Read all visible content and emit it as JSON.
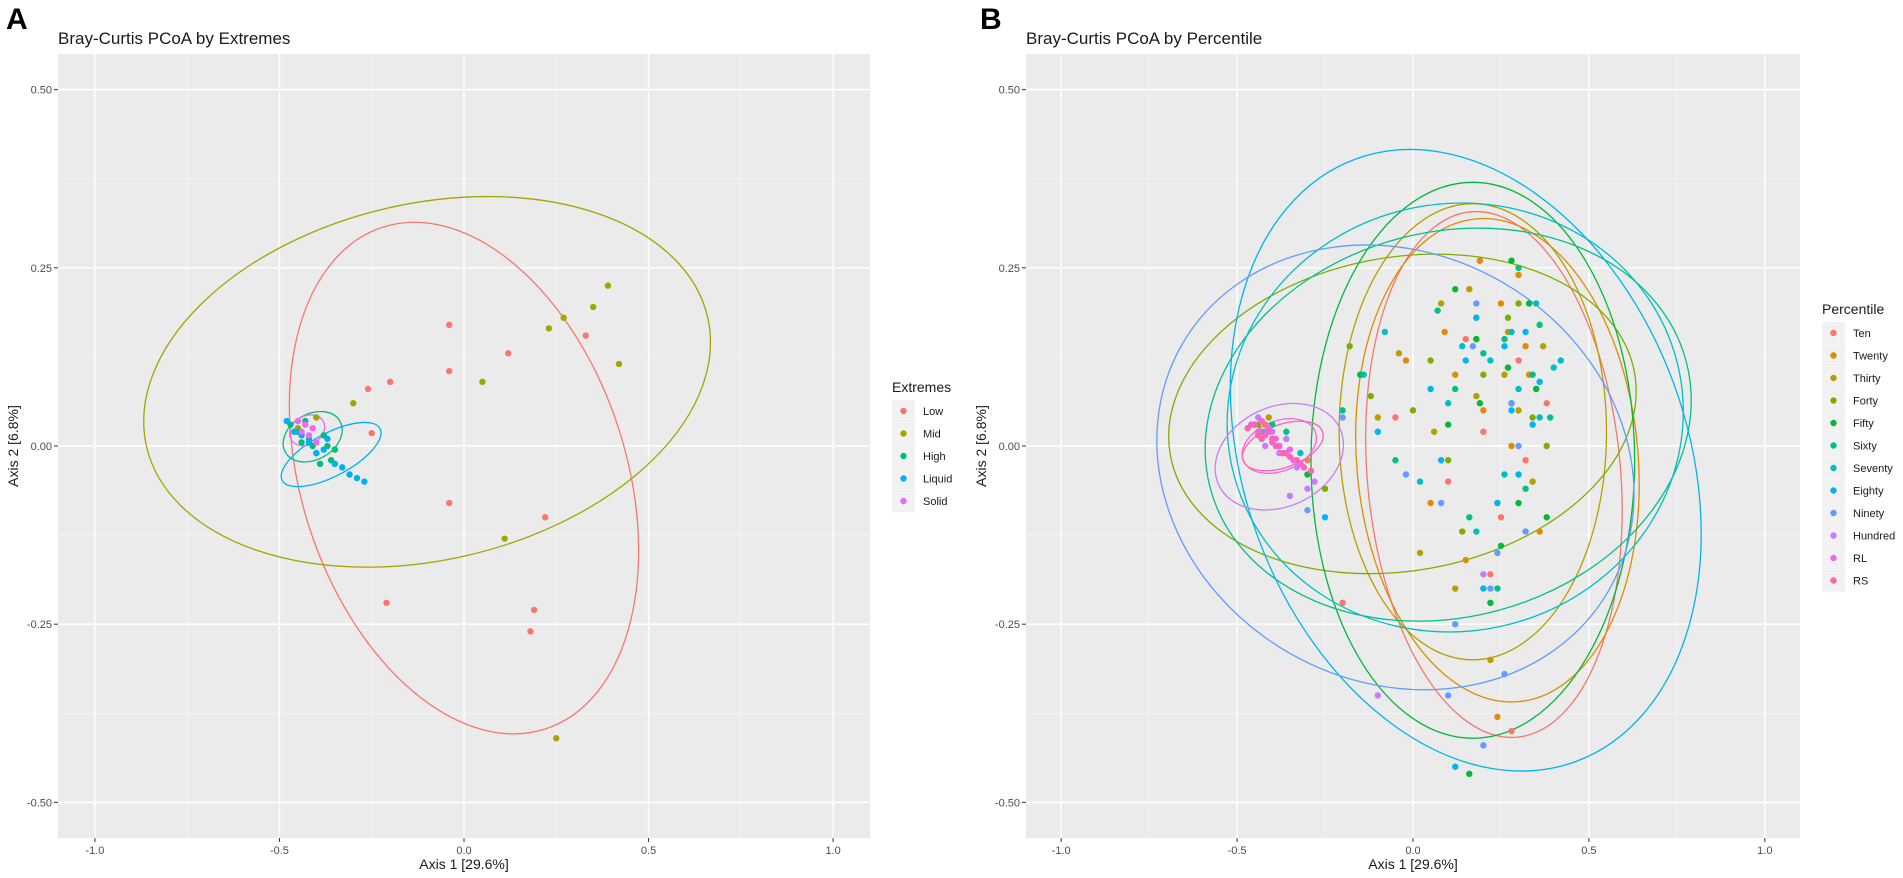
{
  "figure": {
    "panels": [
      {
        "letter": "A",
        "title": "Bray-Curtis PCoA by Extremes",
        "xlabel": "Axis 1 [29.6%]",
        "ylabel": "Axis 2 [6.8%]",
        "xlim": [
          -1.1,
          1.1
        ],
        "ylim": [
          -0.55,
          0.55
        ],
        "x_ticks": [
          -1.0,
          -0.5,
          0.0,
          0.5,
          1.0
        ],
        "x_tick_labels": [
          "-1.0",
          "-0.5",
          "0.0",
          "0.5",
          "1.0"
        ],
        "y_ticks": [
          0.5,
          0.25,
          0.0,
          -0.25,
          -0.5
        ],
        "y_tick_labels": [
          "0.50",
          "0.25",
          "0.00",
          "-0.25",
          "-0.50"
        ],
        "legend": {
          "title": "Extremes",
          "entries": [
            {
              "label": "Low",
              "color": "#F8766D"
            },
            {
              "label": "Mid",
              "color": "#A3A500"
            },
            {
              "label": "High",
              "color": "#00BF7D"
            },
            {
              "label": "Liquid",
              "color": "#00B0F6"
            },
            {
              "label": "Solid",
              "color": "#E76BF3"
            }
          ]
        }
      },
      {
        "letter": "B",
        "title": "Bray-Curtis PCoA by Percentile",
        "xlabel": "Axis 1 [29.6%]",
        "ylabel": "Axis 2 [6.8%]",
        "xlim": [
          -1.1,
          1.1
        ],
        "ylim": [
          -0.55,
          0.55
        ],
        "x_ticks": [
          -1.0,
          -0.5,
          0.0,
          0.5,
          1.0
        ],
        "x_tick_labels": [
          "-1.0",
          "-0.5",
          "0.0",
          "0.5",
          "1.0"
        ],
        "y_ticks": [
          0.5,
          0.25,
          0.0,
          -0.25,
          -0.5
        ],
        "y_tick_labels": [
          "0.50",
          "0.25",
          "0.00",
          "-0.25",
          "-0.50"
        ],
        "legend": {
          "title": "Percentile",
          "entries": [
            {
              "label": "Ten",
              "color": "#F8766D"
            },
            {
              "label": "Twenty",
              "color": "#DE8C00"
            },
            {
              "label": "Thirty",
              "color": "#B79F00"
            },
            {
              "label": "Forty",
              "color": "#7CAE00"
            },
            {
              "label": "Fifty",
              "color": "#00BA38"
            },
            {
              "label": "Sixty",
              "color": "#00C08B"
            },
            {
              "label": "Seventy",
              "color": "#00BFC4"
            },
            {
              "label": "Eighty",
              "color": "#00B4F0"
            },
            {
              "label": "Ninety",
              "color": "#619CFF"
            },
            {
              "label": "Hundred",
              "color": "#C77CFF"
            },
            {
              "label": "RL",
              "color": "#F564E3"
            },
            {
              "label": "RS",
              "color": "#FF64B0"
            }
          ]
        }
      }
    ]
  },
  "chart_data": [
    {
      "type": "scatter",
      "title": "Bray-Curtis PCoA by Extremes",
      "xlabel": "Axis 1 [29.6%]",
      "ylabel": "Axis 2 [6.8%]",
      "xlim": [
        -1.1,
        1.1
      ],
      "ylim": [
        -0.55,
        0.55
      ],
      "grid": true,
      "legend_title": "Extremes",
      "legend_position": "right",
      "series": [
        {
          "name": "Low",
          "color": "#F8766D",
          "x": [
            -0.04,
            -0.04,
            0.12,
            0.33,
            -0.2,
            -0.25,
            -0.26,
            -0.04,
            0.22,
            0.19,
            0.18,
            -0.21
          ],
          "y": [
            0.17,
            0.105,
            0.13,
            0.155,
            0.09,
            0.018,
            0.08,
            -0.08,
            -0.1,
            -0.23,
            -0.26,
            -0.22
          ],
          "ellipse": {
            "cx": 0.0,
            "cy": -0.045,
            "rx": 0.44,
            "ry": 0.37,
            "angle": 18
          }
        },
        {
          "name": "Mid",
          "color": "#A3A500",
          "x": [
            0.39,
            0.35,
            0.27,
            0.23,
            0.42,
            0.05,
            -0.3,
            0.11,
            0.25,
            -0.45,
            -0.4
          ],
          "y": [
            0.225,
            0.195,
            0.18,
            0.165,
            0.115,
            0.09,
            0.06,
            -0.13,
            -0.41,
            0.025,
            0.04
          ],
          "ellipse": {
            "cx": -0.1,
            "cy": 0.09,
            "rx": 0.78,
            "ry": 0.25,
            "angle": 13
          }
        },
        {
          "name": "High",
          "color": "#00BF7D",
          "x": [
            -0.47,
            -0.45,
            -0.43,
            -0.42,
            -0.41,
            -0.4,
            -0.38,
            -0.36,
            -0.44,
            -0.39,
            -0.37,
            -0.35
          ],
          "y": [
            0.03,
            0.02,
            0.035,
            0.01,
            0.0,
            -0.01,
            0.015,
            -0.02,
            0.005,
            -0.025,
            0.0,
            -0.005
          ],
          "ellipse": {
            "cx": -0.41,
            "cy": 0.013,
            "rx": 0.085,
            "ry": 0.032,
            "angle": 30
          }
        },
        {
          "name": "Liquid",
          "color": "#00B0F6",
          "x": [
            -0.48,
            -0.46,
            -0.44,
            -0.42,
            -0.4,
            -0.38,
            -0.35,
            -0.33,
            -0.31,
            -0.29,
            -0.27,
            -0.37
          ],
          "y": [
            0.035,
            0.02,
            0.015,
            0.005,
            -0.01,
            -0.005,
            -0.025,
            -0.03,
            -0.04,
            -0.045,
            -0.05,
            0.01
          ],
          "ellipse": {
            "cx": -0.36,
            "cy": -0.012,
            "rx": 0.15,
            "ry": 0.03,
            "angle": 28
          }
        },
        {
          "name": "Solid",
          "color": "#E76BF3",
          "x": [
            -0.45,
            -0.44,
            -0.43,
            -0.42,
            -0.41,
            -0.4
          ],
          "y": [
            0.035,
            0.02,
            0.03,
            0.015,
            0.025,
            0.005
          ],
          "ellipse": {
            "cx": -0.425,
            "cy": 0.022,
            "rx": 0.05,
            "ry": 0.02,
            "angle": 30
          }
        }
      ]
    },
    {
      "type": "scatter",
      "title": "Bray-Curtis PCoA by Percentile",
      "xlabel": "Axis 1 [29.6%]",
      "ylabel": "Axis 2 [6.8%]",
      "xlim": [
        -1.1,
        1.1
      ],
      "ylim": [
        -0.55,
        0.55
      ],
      "grid": true,
      "legend_title": "Percentile",
      "legend_position": "right",
      "series": [
        {
          "name": "Ten",
          "color": "#F8766D",
          "x": [
            0.3,
            0.35,
            0.2,
            0.1,
            0.25,
            -0.05,
            0.15,
            0.32,
            0.38,
            0.22,
            -0.2,
            0.28,
            -0.42,
            -0.38,
            -0.3,
            0.18
          ],
          "y": [
            0.12,
            0.08,
            0.02,
            -0.05,
            -0.1,
            0.04,
            0.15,
            -0.02,
            0.06,
            -0.18,
            -0.22,
            -0.4,
            0.03,
            0.0,
            -0.02,
            0.18
          ],
          "ellipse": {
            "cx": 0.23,
            "cy": -0.04,
            "rx": 0.36,
            "ry": 0.37,
            "angle": 5
          }
        },
        {
          "name": "Twenty",
          "color": "#DE8C00",
          "x": [
            0.25,
            0.32,
            0.12,
            0.05,
            0.2,
            0.36,
            0.28,
            -0.02,
            0.15,
            0.24,
            0.3,
            -0.4,
            -0.36,
            0.19,
            0.09,
            0.33
          ],
          "y": [
            0.2,
            0.14,
            0.1,
            -0.08,
            0.05,
            -0.12,
            0.0,
            0.12,
            -0.16,
            -0.38,
            0.24,
            0.01,
            -0.01,
            0.26,
            0.16,
            0.1
          ],
          "ellipse": {
            "cx": 0.24,
            "cy": -0.02,
            "rx": 0.4,
            "ry": 0.34,
            "angle": 5
          }
        },
        {
          "name": "Thirty",
          "color": "#B79F00",
          "x": [
            -0.04,
            0.08,
            0.18,
            0.27,
            0.34,
            0.12,
            -0.1,
            0.22,
            0.3,
            -0.43,
            -0.41,
            0.02,
            0.16,
            0.26,
            0.37,
            0.06
          ],
          "y": [
            0.13,
            0.2,
            0.07,
            0.16,
            -0.05,
            -0.2,
            0.04,
            -0.3,
            0.05,
            0.02,
            0.04,
            -0.15,
            0.22,
            0.1,
            0.14,
            0.02
          ],
          "ellipse": {
            "cx": 0.17,
            "cy": 0.02,
            "rx": 0.38,
            "ry": 0.32,
            "angle": 0
          }
        },
        {
          "name": "Forty",
          "color": "#7CAE00",
          "x": [
            -0.18,
            -0.12,
            0.0,
            0.1,
            0.2,
            0.3,
            0.34,
            0.14,
            0.24,
            -0.44,
            -0.4,
            -0.25,
            0.05,
            0.27,
            0.38,
            0.18
          ],
          "y": [
            0.14,
            0.07,
            0.05,
            -0.02,
            0.1,
            0.2,
            0.04,
            -0.12,
            -0.08,
            0.03,
            0.01,
            -0.06,
            0.12,
            0.18,
            0.0,
            0.15
          ],
          "ellipse": {
            "cx": -0.03,
            "cy": 0.045,
            "rx": 0.67,
            "ry": 0.22,
            "angle": 10
          }
        },
        {
          "name": "Fifty",
          "color": "#00BA38",
          "x": [
            0.28,
            0.33,
            0.18,
            0.1,
            0.25,
            0.35,
            0.22,
            -0.15,
            0.16,
            0.3,
            -0.3,
            -0.41,
            0.19,
            0.27,
            0.38,
            0.12
          ],
          "y": [
            0.26,
            0.2,
            0.15,
            0.03,
            -0.14,
            0.08,
            -0.22,
            0.1,
            -0.46,
            -0.08,
            -0.04,
            0.02,
            0.06,
            0.11,
            -0.1,
            0.22
          ],
          "ellipse": {
            "cx": 0.17,
            "cy": -0.02,
            "rx": 0.46,
            "ry": 0.39,
            "angle": 0
          }
        },
        {
          "name": "Sixty",
          "color": "#00C08B",
          "x": [
            0.3,
            0.36,
            0.2,
            0.28,
            0.12,
            -0.05,
            0.32,
            -0.2,
            0.24,
            0.34,
            -0.4,
            -0.36,
            0.16,
            0.26,
            0.07,
            0.39
          ],
          "y": [
            0.25,
            0.17,
            0.13,
            0.06,
            0.08,
            -0.02,
            -0.06,
            0.05,
            -0.2,
            0.1,
            0.03,
            0.02,
            -0.1,
            0.15,
            0.19,
            0.04
          ],
          "ellipse": {
            "cx": 0.1,
            "cy": 0.03,
            "rx": 0.7,
            "ry": 0.27,
            "angle": 15
          }
        },
        {
          "name": "Seventy",
          "color": "#00BFC4",
          "x": [
            0.35,
            0.4,
            0.22,
            0.3,
            0.14,
            -0.08,
            0.26,
            -0.14,
            0.18,
            0.36,
            -0.38,
            -0.32,
            0.1,
            0.28,
            0.02,
            0.42
          ],
          "y": [
            0.2,
            0.11,
            0.12,
            0.08,
            0.14,
            0.16,
            -0.04,
            0.1,
            -0.12,
            0.04,
            0.0,
            -0.01,
            0.06,
            0.16,
            -0.05,
            0.12
          ],
          "ellipse": {
            "cx": 0.12,
            "cy": 0.04,
            "rx": 0.65,
            "ry": 0.3,
            "angle": 12
          }
        },
        {
          "name": "Eighty",
          "color": "#00B4F0",
          "x": [
            0.32,
            0.28,
            0.15,
            0.08,
            0.24,
            -0.1,
            0.2,
            0.34,
            0.12,
            -0.25,
            -0.4,
            0.18,
            0.3,
            0.05,
            0.26,
            0.36
          ],
          "y": [
            0.16,
            0.05,
            0.12,
            -0.02,
            -0.08,
            0.02,
            -0.2,
            0.03,
            -0.45,
            -0.1,
            0.01,
            0.18,
            -0.04,
            0.08,
            0.14,
            0.09
          ],
          "ellipse": {
            "cx": 0.15,
            "cy": -0.02,
            "rx": 0.63,
            "ry": 0.45,
            "angle": 20
          }
        },
        {
          "name": "Ninety",
          "color": "#619CFF",
          "x": [
            0.28,
            0.18,
            0.08,
            0.24,
            0.12,
            -0.2,
            0.2,
            0.26,
            0.1,
            -0.3,
            -0.42,
            0.17,
            0.32,
            -0.02,
            0.22,
            0.3
          ],
          "y": [
            0.06,
            0.2,
            -0.08,
            -0.15,
            -0.25,
            0.04,
            -0.42,
            -0.32,
            -0.35,
            -0.09,
            0.02,
            0.14,
            -0.12,
            -0.04,
            -0.2,
            0.0
          ],
          "ellipse": {
            "cx": -0.05,
            "cy": -0.03,
            "rx": 0.7,
            "ry": 0.3,
            "angle": -30
          }
        },
        {
          "name": "Hundred",
          "color": "#C77CFF",
          "x": [
            -0.1,
            0.2,
            -0.3,
            -0.35,
            -0.45,
            -0.4,
            -0.38,
            -0.42,
            -0.33,
            -0.28,
            -0.36,
            -0.44
          ],
          "y": [
            -0.35,
            -0.18,
            -0.06,
            -0.07,
            0.03,
            0.02,
            -0.01,
            0.0,
            -0.03,
            -0.05,
            0.01,
            0.04
          ],
          "ellipse": {
            "cx": -0.38,
            "cy": -0.015,
            "rx": 0.19,
            "ry": 0.07,
            "angle": 25
          }
        },
        {
          "name": "RL",
          "color": "#F564E3",
          "x": [
            -0.46,
            -0.44,
            -0.42,
            -0.4,
            -0.38,
            -0.36,
            -0.34,
            -0.32,
            -0.43,
            -0.39,
            -0.35,
            -0.41
          ],
          "y": [
            0.03,
            0.02,
            0.015,
            0.005,
            0.0,
            -0.01,
            -0.02,
            -0.025,
            0.035,
            0.01,
            -0.005,
            0.025
          ],
          "ellipse": {
            "cx": -0.38,
            "cy": 0.0,
            "rx": 0.11,
            "ry": 0.035,
            "angle": 22
          }
        },
        {
          "name": "RS",
          "color": "#FF64B0",
          "x": [
            -0.47,
            -0.45,
            -0.43,
            -0.41,
            -0.39,
            -0.37,
            -0.35,
            -0.33,
            -0.31,
            -0.29,
            -0.44,
            -0.4
          ],
          "y": [
            0.025,
            0.03,
            0.01,
            0.02,
            0.0,
            -0.01,
            -0.015,
            -0.02,
            -0.03,
            -0.035,
            0.015,
            0.01
          ],
          "ellipse": {
            "cx": -0.37,
            "cy": 0.0,
            "rx": 0.12,
            "ry": 0.03,
            "angle": 20
          }
        }
      ]
    }
  ]
}
